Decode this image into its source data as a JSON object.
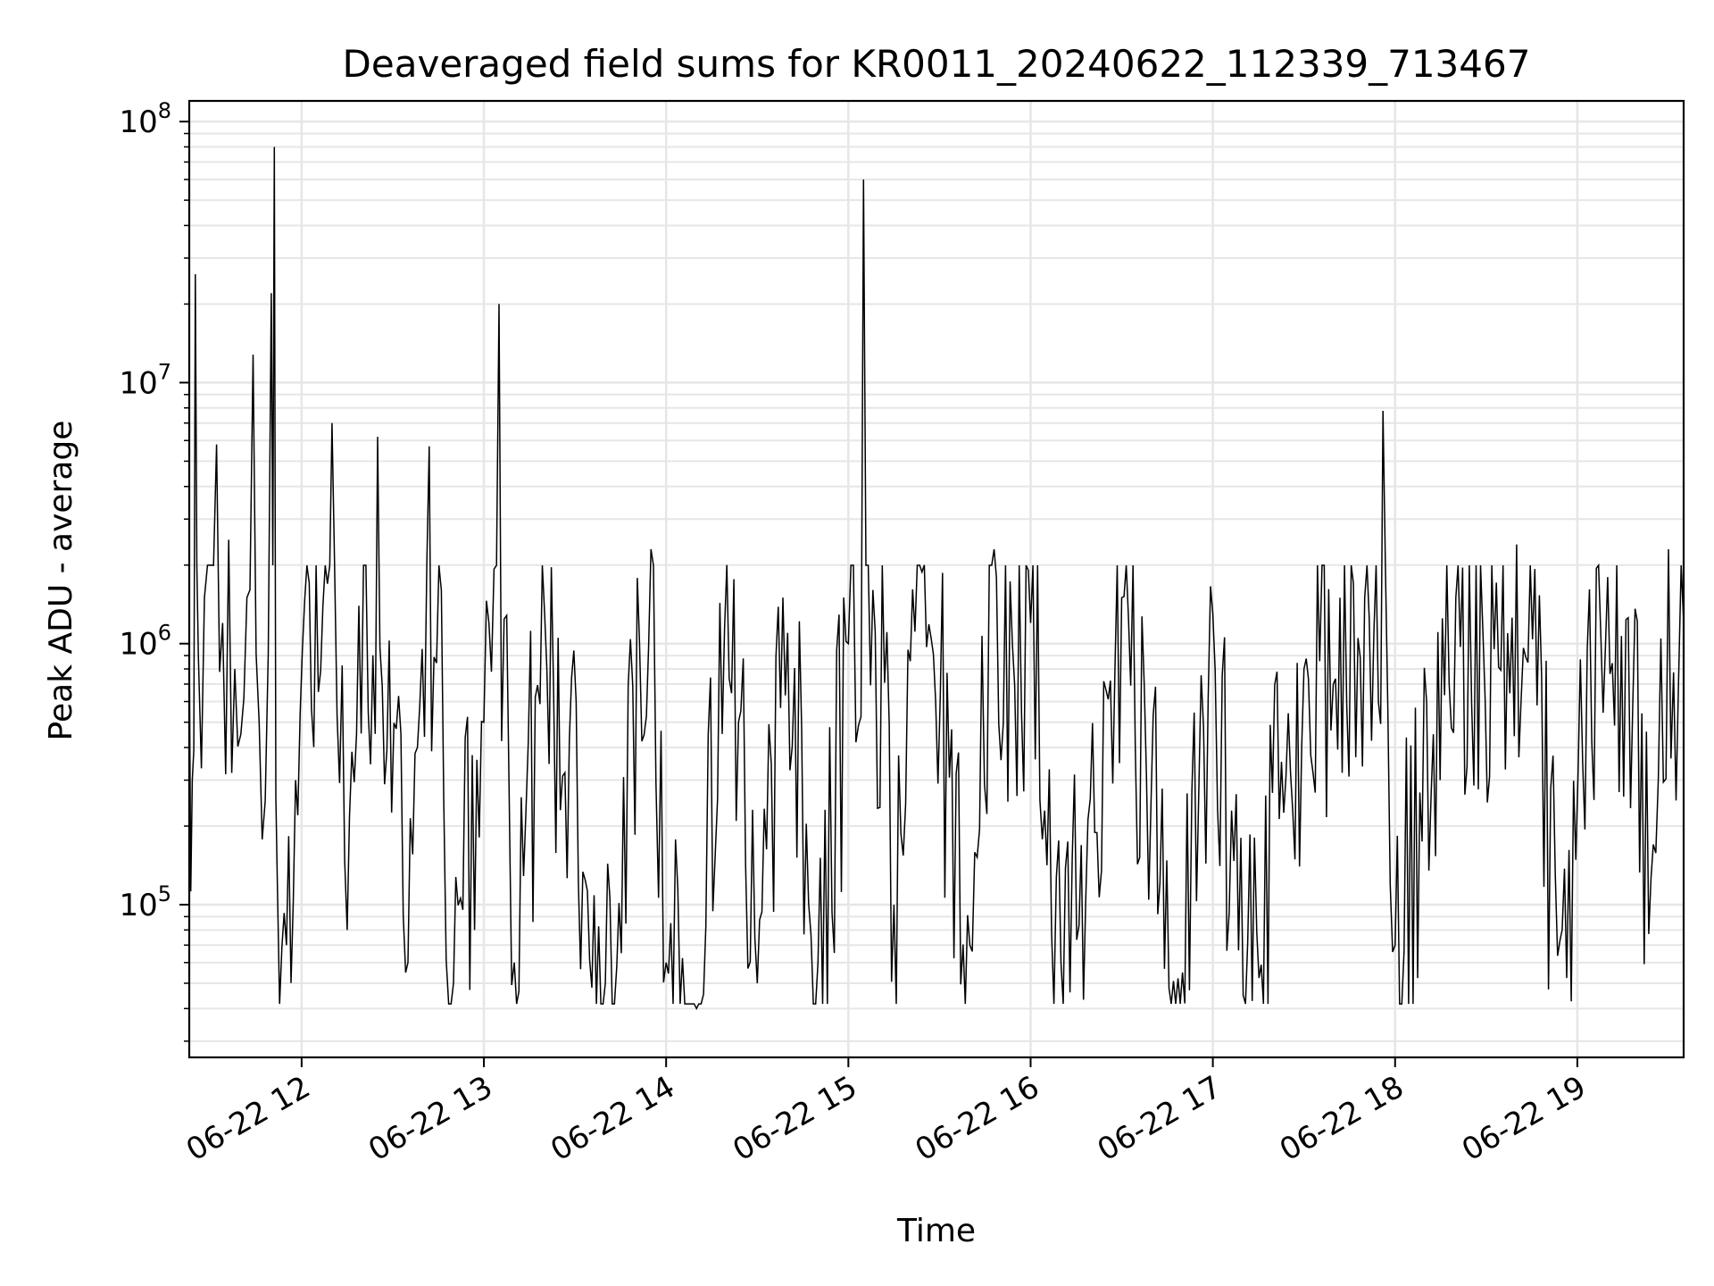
{
  "chart_data": {
    "type": "line",
    "title": "Deaveraged field sums for KR0011_20240622_112339_713467",
    "xlabel": "Time",
    "ylabel": "Peak ADU - average",
    "yscale": "log",
    "ylim": [
      26000,
      120000000
    ],
    "xlim": [
      "2024-06-22 11:23",
      "2024-06-22 19:35"
    ],
    "x_ticks": [
      "06-22 12",
      "06-22 13",
      "06-22 14",
      "06-22 15",
      "06-22 16",
      "06-22 17",
      "06-22 18",
      "06-22 19"
    ],
    "y_ticks": [
      {
        "value": 100000,
        "base": "10",
        "exp": "5"
      },
      {
        "value": 1000000,
        "base": "10",
        "exp": "6"
      },
      {
        "value": 10000000,
        "base": "10",
        "exp": "7"
      },
      {
        "value": 100000000,
        "base": "10",
        "exp": "8"
      }
    ],
    "grid": true,
    "colors": {
      "line": "#000000",
      "grid": "#e6e6e6"
    },
    "series": [
      {
        "values": [
          [
            "2024-06-22 11:23",
            1000000
          ],
          [
            "2024-06-22 11:24",
            300000
          ],
          [
            "2024-06-22 11:25",
            26000000
          ],
          [
            "2024-06-22 11:26",
            900000
          ],
          [
            "2024-06-22 11:28",
            1500000
          ],
          [
            "2024-06-22 11:30",
            2000000
          ],
          [
            "2024-06-22 11:32",
            5800000
          ],
          [
            "2024-06-22 11:34",
            1200000
          ],
          [
            "2024-06-22 11:36",
            2500000
          ],
          [
            "2024-06-22 11:38",
            800000
          ],
          [
            "2024-06-22 11:40",
            450000
          ],
          [
            "2024-06-22 11:42",
            1500000
          ],
          [
            "2024-06-22 11:44",
            12800000
          ],
          [
            "2024-06-22 11:46",
            500000
          ],
          [
            "2024-06-22 11:48",
            250000
          ],
          [
            "2024-06-22 11:50",
            22000000
          ],
          [
            "2024-06-22 11:51",
            80000000
          ],
          [
            "2024-06-22 11:52",
            120000
          ],
          [
            "2024-06-22 11:55",
            70000
          ],
          [
            "2024-06-22 11:58",
            300000
          ],
          [
            "2024-06-22 12:10",
            7000000
          ],
          [
            "2024-06-22 12:15",
            80000
          ],
          [
            "2024-06-22 12:25",
            6200000
          ],
          [
            "2024-06-22 12:35",
            60000
          ],
          [
            "2024-06-22 12:42",
            5700000
          ],
          [
            "2024-06-22 12:50",
            50000
          ],
          [
            "2024-06-22 13:00",
            500000
          ],
          [
            "2024-06-22 13:05",
            20000000
          ],
          [
            "2024-06-22 13:10",
            60000
          ],
          [
            "2024-06-22 13:20",
            1300000
          ],
          [
            "2024-06-22 13:40",
            50000
          ],
          [
            "2024-06-22 13:55",
            2300000
          ],
          [
            "2024-06-22 14:00",
            60000
          ],
          [
            "2024-06-22 14:10",
            40000
          ],
          [
            "2024-06-22 14:20",
            2000000
          ],
          [
            "2024-06-22 14:30",
            50000
          ],
          [
            "2024-06-22 14:40",
            1100000
          ],
          [
            "2024-06-22 14:50",
            60000
          ],
          [
            "2024-06-22 15:00",
            1000000
          ],
          [
            "2024-06-22 15:05",
            60000000
          ],
          [
            "2024-06-22 15:15",
            100000
          ],
          [
            "2024-06-22 15:25",
            2000000
          ],
          [
            "2024-06-22 15:40",
            70000
          ],
          [
            "2024-06-22 15:48",
            2300000
          ],
          [
            "2024-06-22 16:00",
            1200000
          ],
          [
            "2024-06-22 16:10",
            60000
          ],
          [
            "2024-06-22 16:30",
            1500000
          ],
          [
            "2024-06-22 16:50",
            55000
          ],
          [
            "2024-06-22 17:00",
            1300000
          ],
          [
            "2024-06-22 17:10",
            45000
          ],
          [
            "2024-06-22 17:30",
            800000
          ],
          [
            "2024-06-22 17:50",
            1500000
          ],
          [
            "2024-06-22 17:56",
            7800000
          ],
          [
            "2024-06-22 18:00",
            70000
          ],
          [
            "2024-06-22 18:20",
            1500000
          ],
          [
            "2024-06-22 18:40",
            2400000
          ],
          [
            "2024-06-22 18:55",
            80000
          ],
          [
            "2024-06-22 19:10",
            1800000
          ],
          [
            "2024-06-22 19:25",
            170000
          ],
          [
            "2024-06-22 19:30",
            2300000
          ],
          [
            "2024-06-22 19:35",
            1200000
          ]
        ]
      }
    ]
  }
}
